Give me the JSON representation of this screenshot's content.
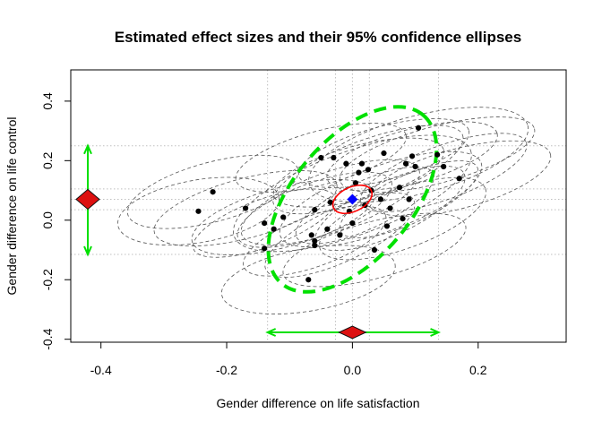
{
  "chart_data": {
    "type": "scatter",
    "title": "Estimated effect sizes and their 95% confidence ellipses",
    "xlabel": "Gender difference on life satisfaction",
    "ylabel": "Gender difference on life control",
    "xlim": [
      -0.448,
      0.34
    ],
    "ylim": [
      -0.41,
      0.505
    ],
    "xticks": [
      -0.4,
      -0.2,
      0.0,
      0.2
    ],
    "xtick_labels": [
      "-0.4",
      "-0.2",
      "0.0",
      "0.2"
    ],
    "yticks": [
      -0.4,
      -0.2,
      0.0,
      0.2,
      0.4
    ],
    "ytick_labels": [
      "-0.4",
      "-0.2",
      "0.0",
      "0.2",
      "0.4"
    ],
    "grid": "dotted lines at summary estimate and interval bounds",
    "grid_x": [
      -0.135,
      -0.027,
      0.0,
      0.027,
      0.137
    ],
    "grid_y": [
      -0.115,
      0.035,
      0.07,
      0.105,
      0.25
    ],
    "studies": [
      {
        "x": -0.245,
        "y": 0.03
      },
      {
        "x": -0.222,
        "y": 0.095
      },
      {
        "x": -0.17,
        "y": 0.04
      },
      {
        "x": -0.14,
        "y": -0.095
      },
      {
        "x": -0.14,
        "y": -0.01
      },
      {
        "x": -0.125,
        "y": -0.03
      },
      {
        "x": -0.11,
        "y": 0.01
      },
      {
        "x": -0.07,
        "y": -0.2
      },
      {
        "x": -0.065,
        "y": -0.05
      },
      {
        "x": -0.06,
        "y": -0.085
      },
      {
        "x": -0.06,
        "y": -0.07
      },
      {
        "x": -0.06,
        "y": 0.035
      },
      {
        "x": -0.05,
        "y": 0.21
      },
      {
        "x": -0.04,
        "y": -0.03
      },
      {
        "x": -0.035,
        "y": 0.06
      },
      {
        "x": -0.03,
        "y": 0.21
      },
      {
        "x": -0.02,
        "y": -0.05
      },
      {
        "x": -0.01,
        "y": 0.19
      },
      {
        "x": -0.005,
        "y": 0.03
      },
      {
        "x": 0.0,
        "y": -0.01
      },
      {
        "x": 0.005,
        "y": 0.125
      },
      {
        "x": 0.01,
        "y": 0.16
      },
      {
        "x": 0.015,
        "y": 0.19
      },
      {
        "x": 0.02,
        "y": 0.05
      },
      {
        "x": 0.025,
        "y": 0.17
      },
      {
        "x": 0.03,
        "y": 0.1
      },
      {
        "x": 0.035,
        "y": -0.1
      },
      {
        "x": 0.045,
        "y": 0.07
      },
      {
        "x": 0.05,
        "y": 0.225
      },
      {
        "x": 0.055,
        "y": -0.02
      },
      {
        "x": 0.06,
        "y": 0.04
      },
      {
        "x": 0.075,
        "y": 0.11
      },
      {
        "x": 0.08,
        "y": 0.005
      },
      {
        "x": 0.085,
        "y": 0.19
      },
      {
        "x": 0.09,
        "y": 0.07
      },
      {
        "x": 0.095,
        "y": 0.215
      },
      {
        "x": 0.1,
        "y": 0.18
      },
      {
        "x": 0.105,
        "y": 0.31
      },
      {
        "x": 0.135,
        "y": 0.22
      },
      {
        "x": 0.145,
        "y": 0.18
      },
      {
        "x": 0.17,
        "y": 0.14
      }
    ],
    "study_ellipses": [
      {
        "cx": -0.245,
        "cy": 0.03,
        "rx": 0.13,
        "ry": 0.105,
        "angle": 10
      },
      {
        "cx": -0.222,
        "cy": 0.095,
        "rx": 0.14,
        "ry": 0.1,
        "angle": 15
      },
      {
        "cx": -0.17,
        "cy": 0.04,
        "rx": 0.15,
        "ry": 0.1,
        "angle": 15
      },
      {
        "cx": -0.14,
        "cy": -0.01,
        "rx": 0.12,
        "ry": 0.08,
        "angle": 20
      },
      {
        "cx": -0.11,
        "cy": 0.01,
        "rx": 0.15,
        "ry": 0.1,
        "angle": 15
      },
      {
        "cx": -0.07,
        "cy": -0.2,
        "rx": 0.14,
        "ry": 0.105,
        "angle": 10
      },
      {
        "cx": -0.06,
        "cy": -0.07,
        "rx": 0.12,
        "ry": 0.085,
        "angle": 20
      },
      {
        "cx": -0.06,
        "cy": 0.035,
        "rx": 0.13,
        "ry": 0.09,
        "angle": 20
      },
      {
        "cx": -0.035,
        "cy": 0.06,
        "rx": 0.15,
        "ry": 0.1,
        "angle": 20
      },
      {
        "cx": -0.02,
        "cy": -0.05,
        "rx": 0.13,
        "ry": 0.09,
        "angle": 25
      },
      {
        "cx": 0.0,
        "cy": 0.09,
        "rx": 0.2,
        "ry": 0.14,
        "angle": 20
      },
      {
        "cx": 0.01,
        "cy": 0.16,
        "rx": 0.14,
        "ry": 0.09,
        "angle": 15
      },
      {
        "cx": 0.02,
        "cy": 0.05,
        "rx": 0.12,
        "ry": 0.08,
        "angle": 25
      },
      {
        "cx": 0.035,
        "cy": -0.1,
        "rx": 0.15,
        "ry": 0.095,
        "angle": 15
      },
      {
        "cx": 0.045,
        "cy": 0.07,
        "rx": 0.17,
        "ry": 0.11,
        "angle": 20
      },
      {
        "cx": 0.05,
        "cy": 0.225,
        "rx": 0.14,
        "ry": 0.09,
        "angle": 15
      },
      {
        "cx": 0.06,
        "cy": 0.04,
        "rx": 0.13,
        "ry": 0.09,
        "angle": 25
      },
      {
        "cx": 0.08,
        "cy": 0.005,
        "rx": 0.14,
        "ry": 0.1,
        "angle": 20
      },
      {
        "cx": 0.09,
        "cy": 0.07,
        "rx": 0.12,
        "ry": 0.08,
        "angle": 25
      },
      {
        "cx": 0.095,
        "cy": 0.215,
        "rx": 0.14,
        "ry": 0.09,
        "angle": 15
      },
      {
        "cx": 0.105,
        "cy": 0.22,
        "rx": 0.18,
        "ry": 0.13,
        "angle": 15
      },
      {
        "cx": 0.135,
        "cy": 0.22,
        "rx": 0.16,
        "ry": 0.095,
        "angle": 15
      },
      {
        "cx": 0.145,
        "cy": 0.16,
        "rx": 0.14,
        "ry": 0.09,
        "angle": 20
      },
      {
        "cx": 0.17,
        "cy": 0.14,
        "rx": 0.15,
        "ry": 0.1,
        "angle": 15
      },
      {
        "cx": -0.05,
        "cy": 0.21,
        "rx": 0.14,
        "ry": 0.09,
        "angle": 15
      },
      {
        "cx": 0.025,
        "cy": 0.17,
        "rx": 0.16,
        "ry": 0.1,
        "angle": 20
      }
    ],
    "summary": {
      "x": 0.0,
      "y": 0.07
    },
    "summary_ellipse": {
      "cx": 0.0,
      "cy": 0.07,
      "rx": 0.033,
      "ry": 0.041,
      "angle": 25
    },
    "prediction_ellipse": {
      "cx": 0.0,
      "cy": 0.07,
      "rx": 0.175,
      "ry": 0.2,
      "angle": 50
    },
    "x_interval": {
      "low": -0.135,
      "high": 0.137,
      "estimate": 0.0
    },
    "y_interval": {
      "low": -0.115,
      "high": 0.25,
      "estimate": 0.07
    },
    "colors": {
      "study": "#000000",
      "study_ellipse": "#555555",
      "summary": "#0000ff",
      "summary_ellipse": "#ff0000",
      "prediction": "#00e000",
      "diamond_fill": "#dd1111",
      "grid": "#bfbfbf"
    }
  }
}
